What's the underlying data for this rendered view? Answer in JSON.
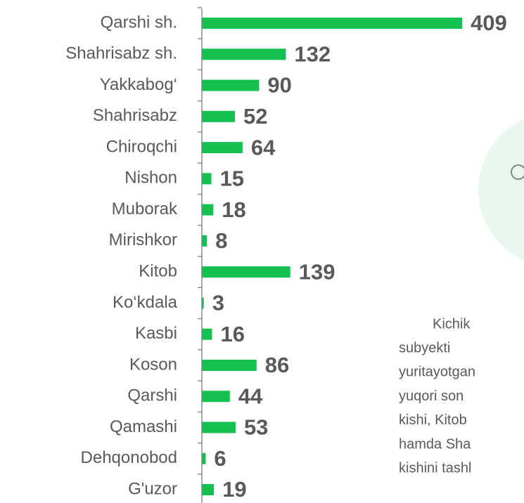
{
  "chart_data": {
    "type": "bar",
    "orientation": "horizontal",
    "categories": [
      "Qarshi sh.",
      "Shahrisabz sh.",
      "Yakkabog‘",
      "Shahrisabz",
      "Chiroqchi",
      "Nishon",
      "Muborak",
      "Mirishkor",
      "Kitob",
      "Ko‘kdala",
      "Kasbi",
      "Koson",
      "Qarshi",
      "Qamashi",
      "Dehqonobod",
      "G'uzor"
    ],
    "values": [
      409,
      132,
      90,
      52,
      64,
      15,
      18,
      8,
      139,
      3,
      16,
      86,
      44,
      53,
      6,
      19
    ],
    "color": "#14c150"
  },
  "side_text": [
    "Kichik",
    "subyekti",
    "yuritayotgan",
    "yuqori son",
    "kishi, Kitob",
    "hamda Sha",
    "kishini tashl"
  ]
}
